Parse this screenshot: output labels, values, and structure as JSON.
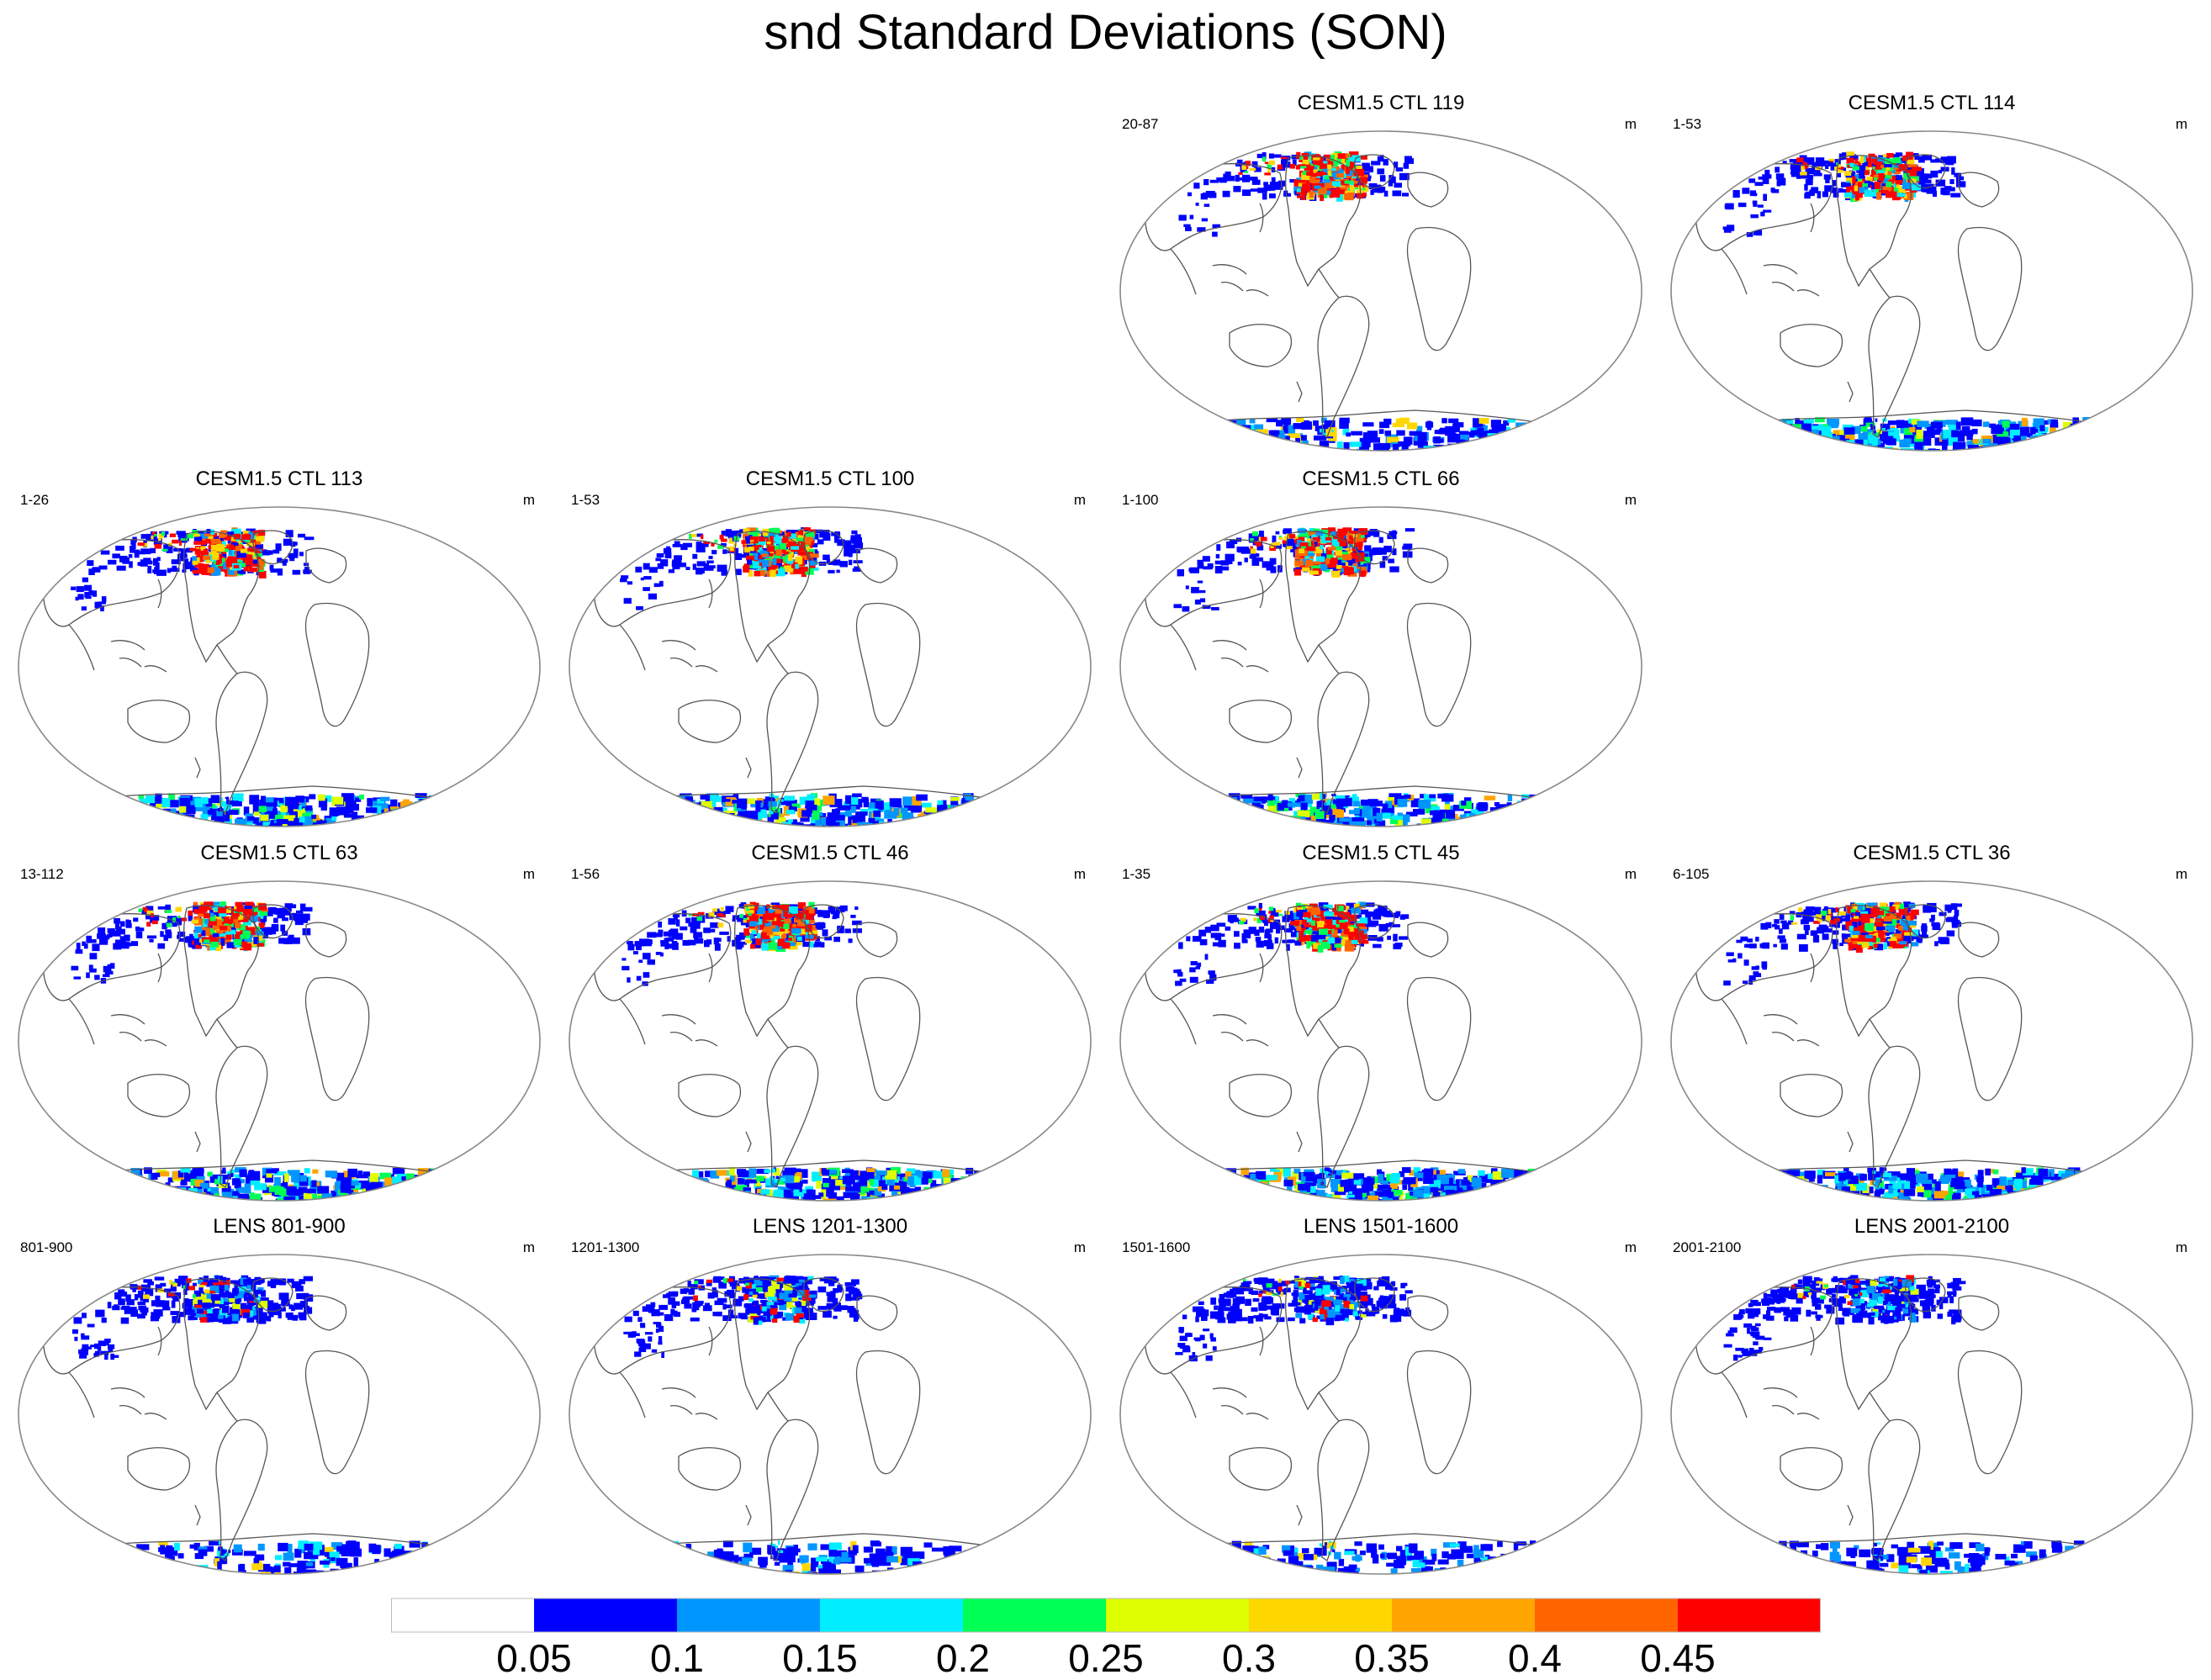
{
  "title": "snd Standard Deviations (SON)",
  "colors": {
    "levels": [
      "#ffffff",
      "#0000ff",
      "#0096ff",
      "#00eeff",
      "#00ff55",
      "#ddff00",
      "#ffd700",
      "#ffa500",
      "#ff6400",
      "#ff0000"
    ],
    "coast": "#555555",
    "border": "#888888"
  },
  "colorbar": {
    "ticks": [
      "0.05",
      "0.1",
      "0.15",
      "0.2",
      "0.25",
      "0.3",
      "0.35",
      "0.4",
      "0.45"
    ]
  },
  "panels": [
    {
      "id": "ctl119",
      "row": 0,
      "col": 2,
      "title": "CESM1.5 CTL 119",
      "range": "20-87",
      "unit": "m",
      "snow_level": 1.0,
      "antarctic_level": 0.55
    },
    {
      "id": "ctl114",
      "row": 0,
      "col": 3,
      "title": "CESM1.5 CTL 114",
      "range": "1-53",
      "unit": "m",
      "snow_level": 0.8,
      "antarctic_level": 0.9
    },
    {
      "id": "ctl113",
      "row": 1,
      "col": 0,
      "title": "CESM1.5 CTL 113",
      "range": "1-26",
      "unit": "m",
      "snow_level": 0.75,
      "antarctic_level": 0.9
    },
    {
      "id": "ctl100",
      "row": 1,
      "col": 1,
      "title": "CESM1.5 CTL 100",
      "range": "1-53",
      "unit": "m",
      "snow_level": 0.95,
      "antarctic_level": 0.9
    },
    {
      "id": "ctl66",
      "row": 1,
      "col": 2,
      "title": "CESM1.5 CTL 66",
      "range": "1-100",
      "unit": "m",
      "snow_level": 1.0,
      "antarctic_level": 0.9
    },
    {
      "id": "ctl63",
      "row": 2,
      "col": 0,
      "title": "CESM1.5 CTL 63",
      "range": "13-112",
      "unit": "m",
      "snow_level": 0.8,
      "antarctic_level": 0.9
    },
    {
      "id": "ctl46",
      "row": 2,
      "col": 1,
      "title": "CESM1.5 CTL 46",
      "range": "1-56",
      "unit": "m",
      "snow_level": 0.9,
      "antarctic_level": 0.95
    },
    {
      "id": "ctl45",
      "row": 2,
      "col": 2,
      "title": "CESM1.5 CTL 45",
      "range": "1-35",
      "unit": "m",
      "snow_level": 0.85,
      "antarctic_level": 0.95
    },
    {
      "id": "ctl36",
      "row": 2,
      "col": 3,
      "title": "CESM1.5 CTL 36",
      "range": "6-105",
      "unit": "m",
      "snow_level": 0.8,
      "antarctic_level": 0.9
    },
    {
      "id": "lens801",
      "row": 3,
      "col": 0,
      "title": "LENS 801-900",
      "range": "801-900",
      "unit": "m",
      "snow_level": 0.4,
      "antarctic_level": 0.3
    },
    {
      "id": "lens1201",
      "row": 3,
      "col": 1,
      "title": "LENS 1201-1300",
      "range": "1201-1300",
      "unit": "m",
      "snow_level": 0.4,
      "antarctic_level": 0.3
    },
    {
      "id": "lens1501",
      "row": 3,
      "col": 2,
      "title": "LENS 1501-1600",
      "range": "1501-1600",
      "unit": "m",
      "snow_level": 0.4,
      "antarctic_level": 0.3
    },
    {
      "id": "lens2001",
      "row": 3,
      "col": 3,
      "title": "LENS 2001-2100",
      "range": "2001-2100",
      "unit": "m",
      "snow_level": 0.4,
      "antarctic_level": 0.3
    }
  ],
  "chart_data": {
    "type": "heatmap",
    "title": "snd Standard Deviations (SON)",
    "variable": "snd",
    "season": "SON",
    "units": "m",
    "contour_levels": [
      0.05,
      0.1,
      0.15,
      0.2,
      0.25,
      0.3,
      0.35,
      0.4,
      0.45
    ],
    "panels": [
      "CESM1.5 CTL 119",
      "CESM1.5 CTL 114",
      "CESM1.5 CTL 113",
      "CESM1.5 CTL 100",
      "CESM1.5 CTL 66",
      "CESM1.5 CTL 63",
      "CESM1.5 CTL 46",
      "CESM1.5 CTL 45",
      "CESM1.5 CTL 36",
      "LENS 801-900",
      "LENS 1201-1300",
      "LENS 1501-1600",
      "LENS 2001-2100"
    ]
  }
}
